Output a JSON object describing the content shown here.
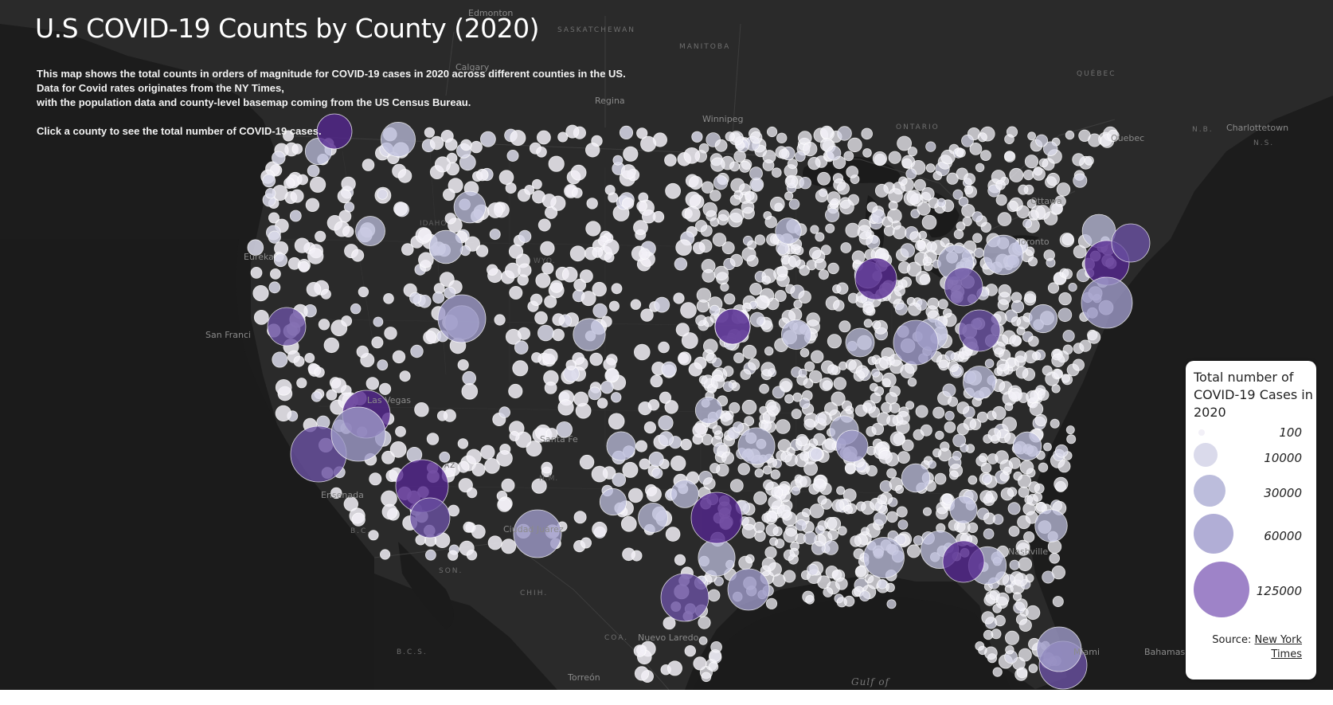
{
  "title": "U.S COVID-19 Counts by County (2020)",
  "description": {
    "line1": "This map shows the total counts in orders of magnitude for COVID-19 cases in 2020 across different counties in the US.",
    "line2": "Data for Covid rates originates from the NY Times,",
    "line3": "with the population data and county-level basemap coming from the US Census Bureau.",
    "line4": "Click a county to see the total number of COVID-19 cases."
  },
  "legend": {
    "title": "Total number of COVID-19 Cases in 2020",
    "items": [
      {
        "label": "100",
        "color": "#f2f0f7"
      },
      {
        "label": "10000",
        "color": "#dadaeb"
      },
      {
        "label": "30000",
        "color": "#bcbddc"
      },
      {
        "label": "60000",
        "color": "#9e9ac8"
      },
      {
        "label": "125000",
        "color": "#756bb1"
      }
    ],
    "source_prefix": "Source:",
    "source_link": "New York Times"
  },
  "map_labels": {
    "cities": [
      "Edmonton",
      "Calgary",
      "Regina",
      "Winnipeg",
      "Quebec",
      "Charlottetown",
      "Ottawa",
      "Toronto",
      "Eureka",
      "San Francisco",
      "Las Vegas",
      "Santa Fe",
      "Ciudad Juárez",
      "Ensenada",
      "Nuevo Laredo",
      "Torreón",
      "Nashville",
      "Miami",
      "Bahamas"
    ],
    "regions": [
      "SASKATCHEWAN",
      "MANITOBA",
      "ONTARIO",
      "QUÉBEC",
      "N.B.",
      "N.S.",
      "B.C.",
      "SON.",
      "CHIH.",
      "COA.",
      "B.C.S."
    ],
    "states": [
      "IDAHO",
      "WYO.",
      "N.M.",
      "AZ"
    ],
    "water": [
      "Gulf of"
    ]
  },
  "colors": {
    "background": "#232323",
    "land": "#2b2b2b",
    "water": "#1b1b1b",
    "bubble_small": "#f2f0f7",
    "bubble_mid": "#bcbddc",
    "bubble_large": "#54278f"
  }
}
